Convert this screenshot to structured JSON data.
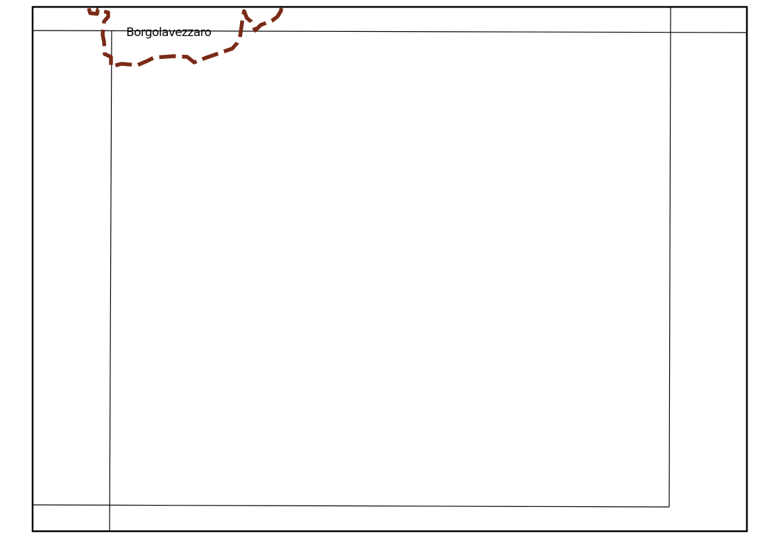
{
  "map": {
    "place_label": "Borgolavezzaro",
    "boundary": {
      "type": "municipal-boundary",
      "style": "dashed"
    },
    "colors": {
      "boundary": "#7a2b17",
      "frame": "#000000",
      "background": "#ffffff",
      "label": "#000000"
    }
  }
}
